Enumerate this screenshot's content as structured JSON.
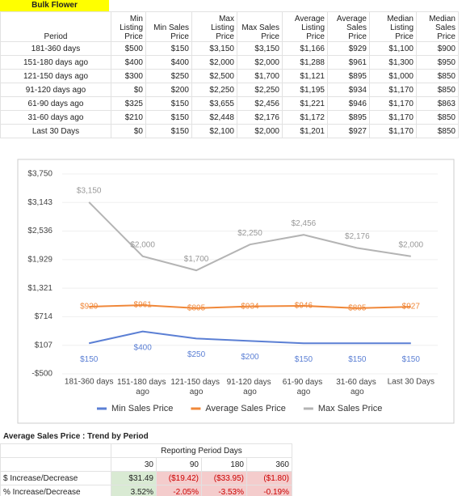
{
  "sheet_title": "Bulk Flower",
  "table": {
    "columns": [
      "Period",
      "Min Listing Price",
      "Min Sales Price",
      "Max Listing Price",
      "Max Sales Price",
      "Average Listing Price",
      "Average Sales Price",
      "Median Listing Price",
      "Median Sales Price"
    ],
    "rows": [
      [
        "181-360 days",
        "$500",
        "$150",
        "$3,150",
        "$3,150",
        "$1,166",
        "$929",
        "$1,100",
        "$900"
      ],
      [
        "151-180 days ago",
        "$400",
        "$400",
        "$2,000",
        "$2,000",
        "$1,288",
        "$961",
        "$1,300",
        "$950"
      ],
      [
        "121-150 days ago",
        "$300",
        "$250",
        "$2,500",
        "$1,700",
        "$1,121",
        "$895",
        "$1,000",
        "$850"
      ],
      [
        "91-120 days ago",
        "$0",
        "$200",
        "$2,250",
        "$2,250",
        "$1,195",
        "$934",
        "$1,170",
        "$850"
      ],
      [
        "61-90 days ago",
        "$325",
        "$150",
        "$3,655",
        "$2,456",
        "$1,221",
        "$946",
        "$1,170",
        "$863"
      ],
      [
        "31-60 days ago",
        "$210",
        "$150",
        "$2,448",
        "$2,176",
        "$1,172",
        "$895",
        "$1,170",
        "$850"
      ],
      [
        "Last 30 Days",
        "$0",
        "$150",
        "$2,100",
        "$2,000",
        "$1,201",
        "$927",
        "$1,170",
        "$850"
      ]
    ]
  },
  "chart_data": {
    "type": "line",
    "categories": [
      "181-360 days",
      "151-180 days ago",
      "121-150 days ago",
      "91-120 days ago",
      "61-90 days ago",
      "31-60 days ago",
      "Last 30 Days"
    ],
    "series": [
      {
        "name": "Min Sales Price",
        "color": "#5b7fd4",
        "values": [
          150,
          400,
          250,
          200,
          150,
          150,
          150
        ],
        "value_labels": [
          "$150",
          "$400",
          "$250",
          "$200",
          "$150",
          "$150",
          "$150"
        ]
      },
      {
        "name": "Average Sales Price",
        "color": "#f0883a",
        "values": [
          929,
          961,
          895,
          934,
          946,
          895,
          927
        ],
        "value_labels": [
          "$929",
          "$961",
          "$895",
          "$934",
          "$946",
          "$895",
          "$927"
        ]
      },
      {
        "name": "Max Sales Price",
        "color": "#b4b4b4",
        "values": [
          3150,
          2000,
          1700,
          2250,
          2456,
          2176,
          2000
        ],
        "value_labels": [
          "$3,150",
          "$2,000",
          "$1,700",
          "$2,250",
          "$2,456",
          "$2,176",
          "$2,000"
        ]
      }
    ],
    "ylim": [
      -500,
      3750
    ],
    "yticks": [
      {
        "value": -500,
        "label": "-$500"
      },
      {
        "value": 107.14,
        "label": "$107"
      },
      {
        "value": 714.29,
        "label": "$714"
      },
      {
        "value": 1321.43,
        "label": "$1,321"
      },
      {
        "value": 1928.57,
        "label": "$1,929"
      },
      {
        "value": 2535.71,
        "label": "$2,536"
      },
      {
        "value": 3142.86,
        "label": "$3,143"
      },
      {
        "value": 3750,
        "label": "$3,750"
      }
    ],
    "grid": true
  },
  "trend": {
    "title": "Average Sales Price : Trend by Period",
    "group_header": "Reporting Period Days",
    "columns": [
      "30",
      "90",
      "180",
      "360"
    ],
    "rows": [
      {
        "label": "$ Increase/Decrease",
        "cells": [
          "$31.49",
          "($19.42)",
          "($33.95)",
          "($1.80)"
        ]
      },
      {
        "label": "% Increase/Decrease",
        "cells": [
          "3.52%",
          "-2.05%",
          "-3.53%",
          "-0.19%"
        ]
      }
    ]
  }
}
